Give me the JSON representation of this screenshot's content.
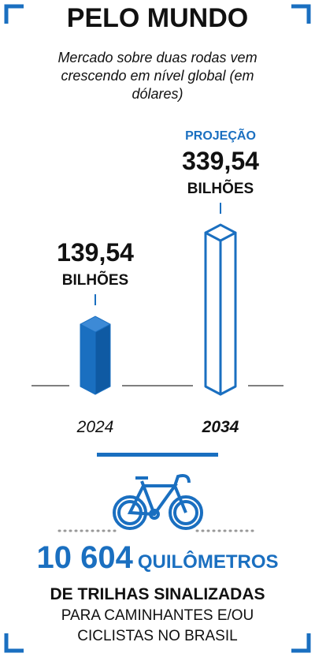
{
  "chart_data": {
    "type": "bar",
    "title": "PELO MUNDO",
    "subtitle": "Mercado sobre duas rodas vem crescendo em nível global (em dólares)",
    "categories": [
      "2024",
      "2034"
    ],
    "values": [
      139.54,
      339.54
    ],
    "value_labels": [
      "139,54",
      "339,54"
    ],
    "unit_labels": [
      "BILHÕES",
      "BILHÕES"
    ],
    "annotation": "PROJEÇÃO",
    "styles": [
      "solid",
      "outline"
    ],
    "color": "#1a6fc0"
  },
  "footer": {
    "number": "10 604",
    "unit": "QUILÔMETROS",
    "line1": "DE TRILHAS SINALIZADAS",
    "line2": "PARA CAMINHANTES E/OU",
    "line3": "CICLISTAS NO BRASIL"
  }
}
